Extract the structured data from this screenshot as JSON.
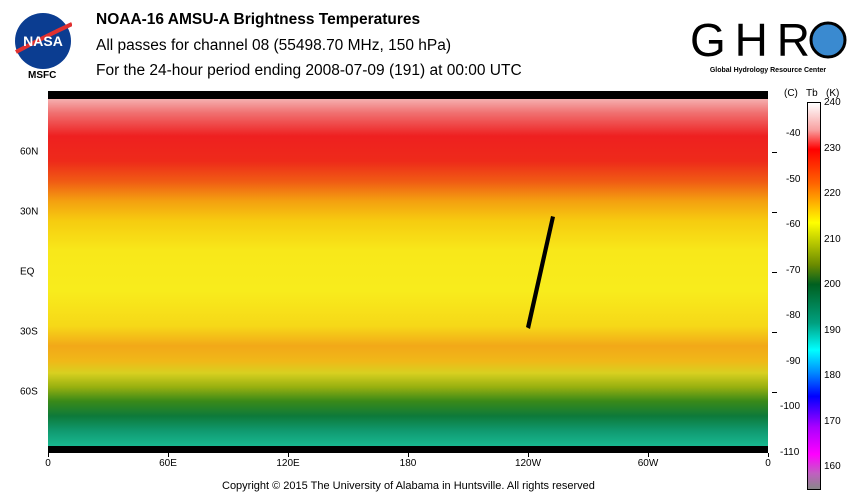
{
  "header": {
    "title": "NOAA-16 AMSU-A Brightness Temperatures",
    "subtitle": "All passes for channel 08 (55498.70 MHz, 150 hPa)",
    "period": "For the 24-hour period ending 2008-07-09 (191) at 00:00 UTC"
  },
  "logos": {
    "left": "NASA",
    "left_caption": "MSFC",
    "right": "GHRC",
    "right_caption": "Global Hydrology Resource Center"
  },
  "footer": {
    "copyright": "Copyright © 2015 The University of Alabama in Huntsville.  All rights reserved"
  },
  "chart_data": {
    "type": "heatmap",
    "title": "NOAA-16 AMSU-A Brightness Temperatures",
    "x_ticks": [
      {
        "v": 0,
        "l": "0"
      },
      {
        "v": 60,
        "l": "60E"
      },
      {
        "v": 120,
        "l": "120E"
      },
      {
        "v": 180,
        "l": "180"
      },
      {
        "v": 240,
        "l": "120W"
      },
      {
        "v": 300,
        "l": "60W"
      },
      {
        "v": 360,
        "l": "0"
      }
    ],
    "y_ticks": [
      {
        "v": 60,
        "l": "60N"
      },
      {
        "v": 30,
        "l": "30N"
      },
      {
        "v": 0,
        "l": "EQ"
      },
      {
        "v": -30,
        "l": "30S"
      },
      {
        "v": -60,
        "l": "60S"
      }
    ],
    "zonal_tb_K": [
      {
        "lat": 80,
        "tb": 235
      },
      {
        "lat": 60,
        "tb": 229
      },
      {
        "lat": 45,
        "tb": 222
      },
      {
        "lat": 30,
        "tb": 218
      },
      {
        "lat": 0,
        "tb": 216
      },
      {
        "lat": -30,
        "tb": 218
      },
      {
        "lat": -45,
        "tb": 220
      },
      {
        "lat": -60,
        "tb": 206
      },
      {
        "lat": -75,
        "tb": 197
      }
    ],
    "colorbar": {
      "label_c": "(C)",
      "label_tb": "Tb",
      "label_k": "(K)",
      "range_K": [
        155,
        240
      ],
      "kelvin_ticks": [
        240,
        230,
        220,
        210,
        200,
        190,
        180,
        170,
        160
      ],
      "celsius_ticks": [
        -40,
        -50,
        -60,
        -70,
        -80,
        -90,
        -100,
        -110
      ]
    }
  }
}
